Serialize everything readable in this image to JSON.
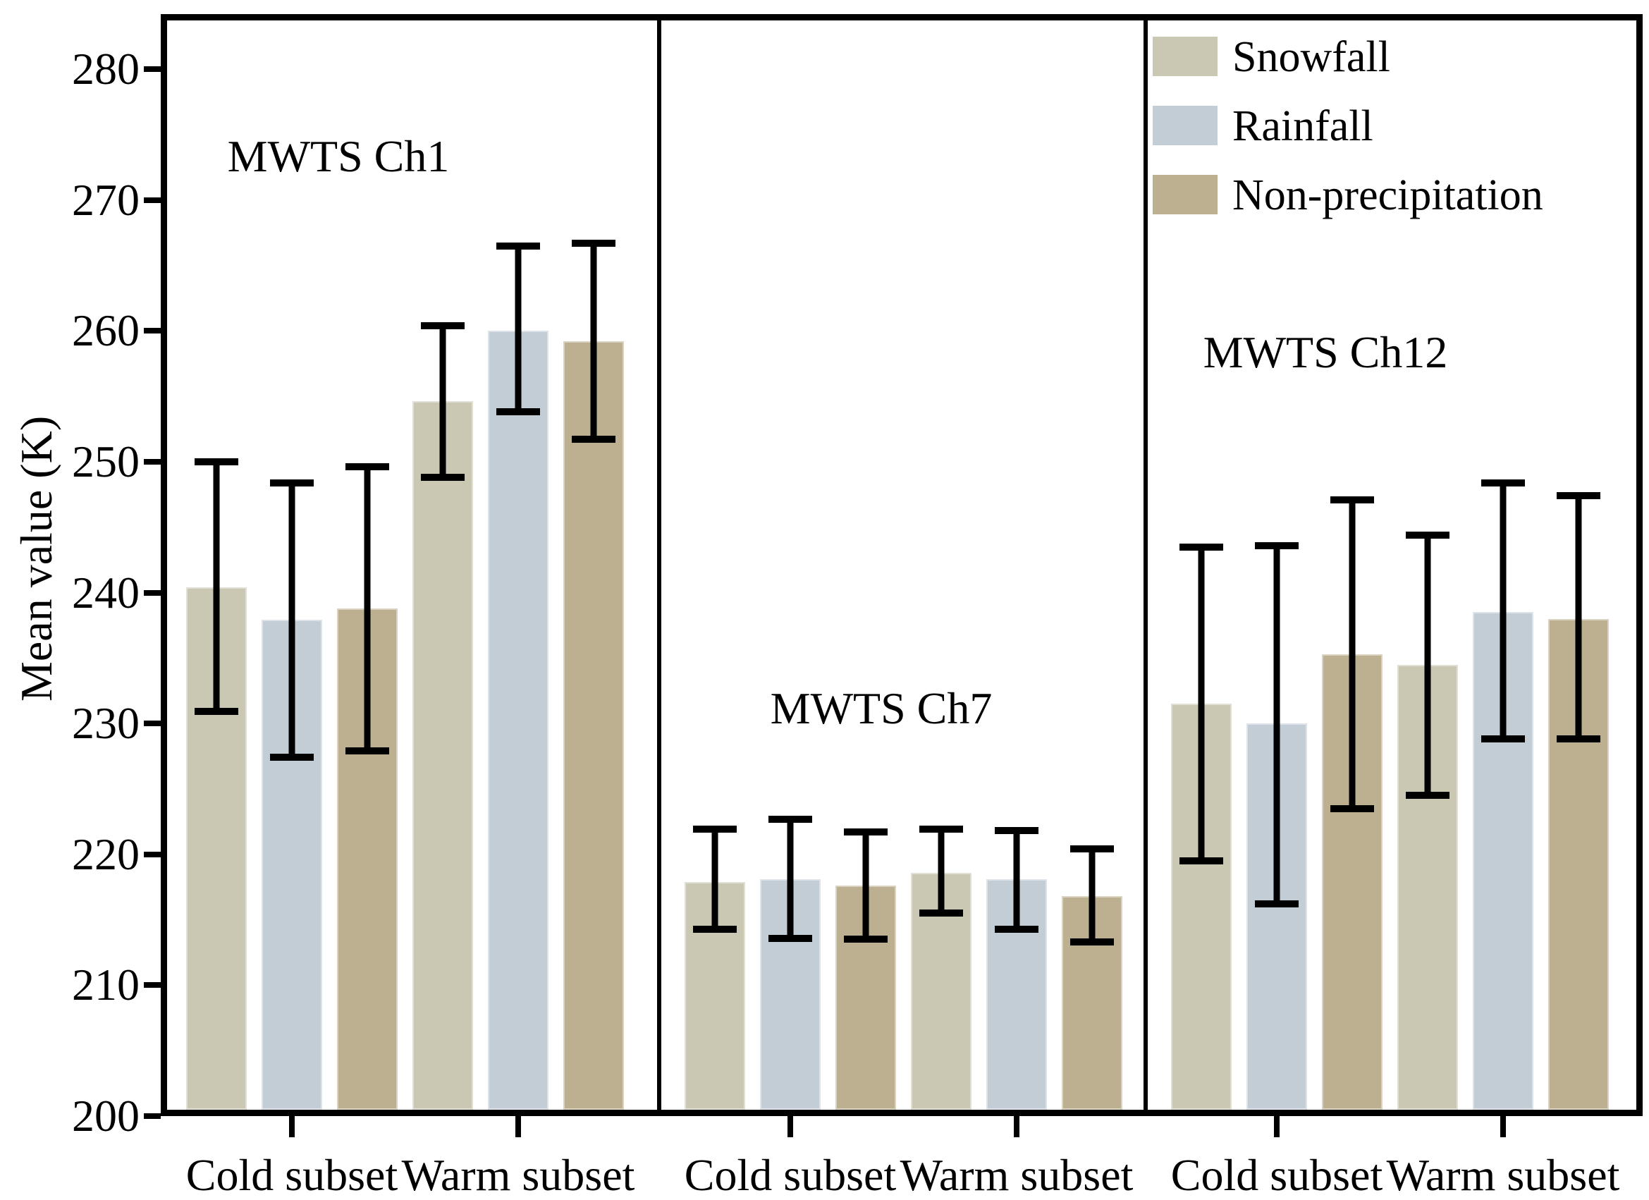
{
  "figure": {
    "ylabel": "Mean value (K)",
    "background": "#ffffff",
    "axis_color": "#000000"
  },
  "legend": {
    "items": [
      {
        "label": "Snowfall",
        "color": "#cac7b3"
      },
      {
        "label": "Rainfall",
        "color": "#c2cdd6"
      },
      {
        "label": "Non-precipitation",
        "color": "#bdb091"
      }
    ]
  },
  "chart_data": {
    "type": "bar",
    "title": "",
    "xlabel": "",
    "ylabel": "Mean value (K)",
    "ylim": [
      200,
      284.2
    ],
    "yticks": [
      280,
      270,
      260,
      250,
      240,
      230,
      220,
      210,
      200
    ],
    "grid": false,
    "legend_position": "upper right inside third panel",
    "group_labels": [
      "Cold subset",
      "Warm subset"
    ],
    "series_names": [
      "Snowfall",
      "Rainfall",
      "Non-precipitation"
    ],
    "series_colors": {
      "Snowfall": "#cac7b3",
      "Rainfall": "#c2cdd6",
      "Non-precipitation": "#bdb091"
    },
    "error_bar_color": "#000000",
    "panels": [
      {
        "title": "MWTS Ch1",
        "groups": [
          {
            "label": "Cold subset",
            "bars": [
              {
                "series": "Snowfall",
                "value": 240.4,
                "err_lo": 230.9,
                "err_hi": 250.0
              },
              {
                "series": "Rainfall",
                "value": 237.9,
                "err_lo": 227.4,
                "err_hi": 248.4
              },
              {
                "series": "Non-precipitation",
                "value": 238.8,
                "err_lo": 227.9,
                "err_hi": 249.6
              }
            ]
          },
          {
            "label": "Warm subset",
            "bars": [
              {
                "series": "Snowfall",
                "value": 254.6,
                "err_lo": 248.8,
                "err_hi": 260.4
              },
              {
                "series": "Rainfall",
                "value": 260.0,
                "err_lo": 253.8,
                "err_hi": 266.5
              },
              {
                "series": "Non-precipitation",
                "value": 259.2,
                "err_lo": 251.7,
                "err_hi": 266.7
              }
            ]
          }
        ]
      },
      {
        "title": "MWTS Ch7",
        "groups": [
          {
            "label": "Cold subset",
            "bars": [
              {
                "series": "Snowfall",
                "value": 217.9,
                "err_lo": 214.3,
                "err_hi": 221.9
              },
              {
                "series": "Rainfall",
                "value": 218.1,
                "err_lo": 213.6,
                "err_hi": 222.7
              },
              {
                "series": "Non-precipitation",
                "value": 217.6,
                "err_lo": 213.5,
                "err_hi": 221.7
              }
            ]
          },
          {
            "label": "Warm subset",
            "bars": [
              {
                "series": "Snowfall",
                "value": 218.6,
                "err_lo": 215.5,
                "err_hi": 221.9
              },
              {
                "series": "Rainfall",
                "value": 218.1,
                "err_lo": 214.3,
                "err_hi": 221.8
              },
              {
                "series": "Non-precipitation",
                "value": 216.8,
                "err_lo": 213.3,
                "err_hi": 220.4
              }
            ]
          }
        ]
      },
      {
        "title": "MWTS Ch12",
        "groups": [
          {
            "label": "Cold subset",
            "bars": [
              {
                "series": "Snowfall",
                "value": 231.5,
                "err_lo": 219.5,
                "err_hi": 243.5
              },
              {
                "series": "Rainfall",
                "value": 230.0,
                "err_lo": 216.2,
                "err_hi": 243.6
              },
              {
                "series": "Non-precipitation",
                "value": 235.3,
                "err_lo": 223.5,
                "err_hi": 247.1
              }
            ]
          },
          {
            "label": "Warm subset",
            "bars": [
              {
                "series": "Snowfall",
                "value": 234.5,
                "err_lo": 224.5,
                "err_hi": 244.4
              },
              {
                "series": "Rainfall",
                "value": 238.5,
                "err_lo": 228.8,
                "err_hi": 248.4
              },
              {
                "series": "Non-precipitation",
                "value": 238.0,
                "err_lo": 228.8,
                "err_hi": 247.4
              }
            ]
          }
        ]
      }
    ]
  }
}
